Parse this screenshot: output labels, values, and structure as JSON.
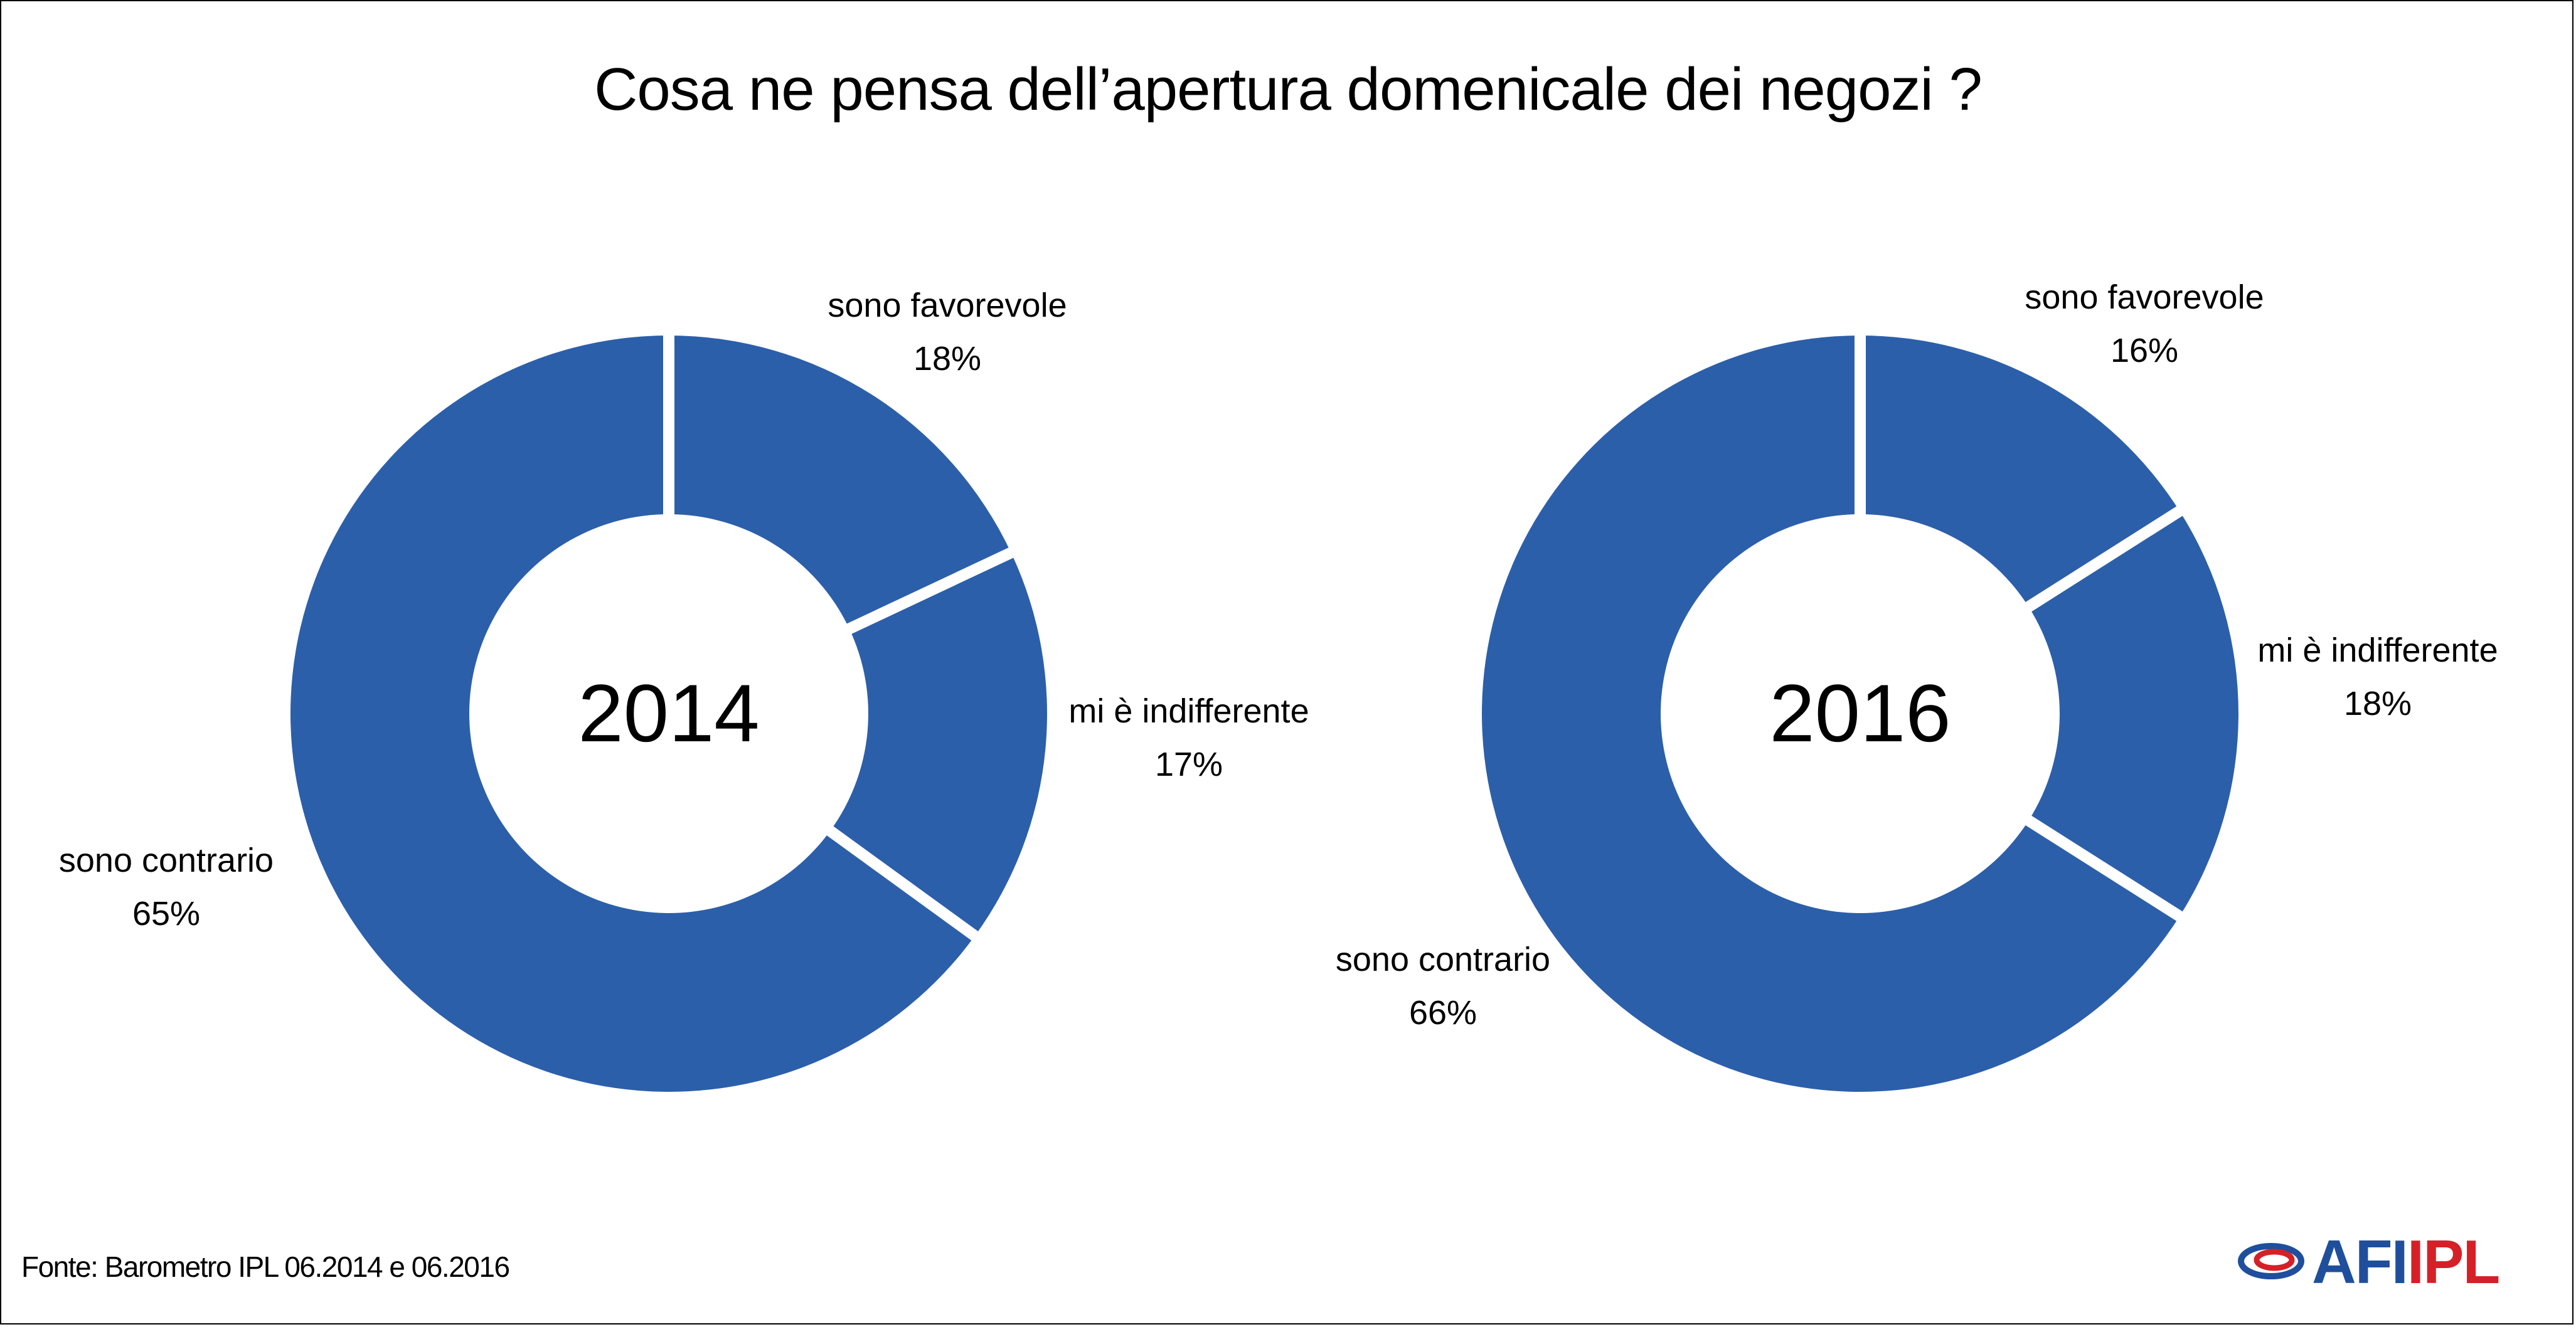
{
  "title": "Cosa ne pensa dell’apertura domenicale dei negozi ?",
  "source": "Fonte: Barometro IPL 06.2014 e 06.2016",
  "logo": {
    "afi": "AFI",
    "ipl": "IPL"
  },
  "colors": {
    "slice": "#2c5faa",
    "separator": "#ffffff",
    "logo_blue": "#1f4f9c",
    "logo_red": "#d62027"
  },
  "chart_data": [
    {
      "type": "pie",
      "center_label": "2014",
      "slices": [
        {
          "label": "sono favorevole",
          "value": 18,
          "value_label": "18%"
        },
        {
          "label": "mi è indifferente",
          "value": 17,
          "value_label": "17%"
        },
        {
          "label": "sono contrario",
          "value": 65,
          "value_label": "65%"
        }
      ]
    },
    {
      "type": "pie",
      "center_label": "2016",
      "slices": [
        {
          "label": "sono favorevole",
          "value": 16,
          "value_label": "16%"
        },
        {
          "label": "mi è indifferente",
          "value": 18,
          "value_label": "18%"
        },
        {
          "label": "sono contrario",
          "value": 66,
          "value_label": "66%"
        }
      ]
    }
  ]
}
